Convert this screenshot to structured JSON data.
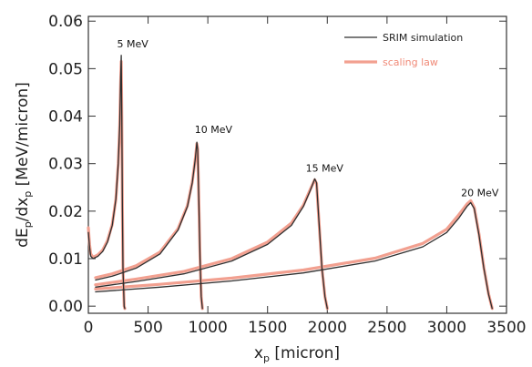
{
  "chart_data": {
    "type": "line",
    "xlabel": {
      "main": "x",
      "sub": "p",
      "unit": " [micron]"
    },
    "ylabel": {
      "d1": "dE",
      "s1": "p",
      "mid": "/dx",
      "s2": "p",
      "unit": " [MeV/micron]"
    },
    "xlim": [
      0,
      3500
    ],
    "ylim": [
      -0.0015,
      0.061
    ],
    "xticks": [
      0,
      500,
      1000,
      1500,
      2000,
      2500,
      3000,
      3500
    ],
    "yticks": [
      0.0,
      0.01,
      0.02,
      0.03,
      0.04,
      0.05,
      0.06
    ],
    "ytick_labels": [
      "0.00",
      "0.01",
      "0.02",
      "0.03",
      "0.04",
      "0.05",
      "0.06"
    ],
    "legend_position": "top-right",
    "annotations": [
      {
        "text": "5 MeV",
        "x": 240,
        "y": 0.0545
      },
      {
        "text": "10 MeV",
        "x": 890,
        "y": 0.0365
      },
      {
        "text": "15 MeV",
        "x": 1820,
        "y": 0.0283
      },
      {
        "text": "20 MeV",
        "x": 3120,
        "y": 0.0231
      }
    ],
    "series": [
      {
        "name": "SRIM simulation",
        "color": "#2f2f2f",
        "curves": [
          [
            [
              0,
              0.0155
            ],
            [
              10,
              0.0125
            ],
            [
              20,
              0.0105
            ],
            [
              40,
              0.01
            ],
            [
              80,
              0.0105
            ],
            [
              120,
              0.0115
            ],
            [
              160,
              0.0135
            ],
            [
              200,
              0.017
            ],
            [
              230,
              0.0225
            ],
            [
              250,
              0.03
            ],
            [
              262,
              0.038
            ],
            [
              270,
              0.048
            ],
            [
              275,
              0.0528
            ],
            [
              280,
              0.04
            ],
            [
              285,
              0.02
            ],
            [
              290,
              0.008
            ],
            [
              300,
              0.0
            ],
            [
              305,
              -0.0005
            ]
          ],
          [
            [
              60,
              0.0055
            ],
            [
              200,
              0.0063
            ],
            [
              400,
              0.008
            ],
            [
              600,
              0.011
            ],
            [
              750,
              0.016
            ],
            [
              830,
              0.021
            ],
            [
              870,
              0.026
            ],
            [
              895,
              0.031
            ],
            [
              908,
              0.0345
            ],
            [
              915,
              0.033
            ],
            [
              925,
              0.022
            ],
            [
              935,
              0.01
            ],
            [
              945,
              0.002
            ],
            [
              955,
              -0.0005
            ]
          ],
          [
            [
              60,
              0.004
            ],
            [
              400,
              0.0052
            ],
            [
              800,
              0.0068
            ],
            [
              1200,
              0.0095
            ],
            [
              1500,
              0.013
            ],
            [
              1700,
              0.017
            ],
            [
              1800,
              0.021
            ],
            [
              1860,
              0.0245
            ],
            [
              1895,
              0.0268
            ],
            [
              1910,
              0.026
            ],
            [
              1930,
              0.018
            ],
            [
              1955,
              0.008
            ],
            [
              1980,
              0.002
            ],
            [
              2000,
              -0.0005
            ]
          ],
          [
            [
              60,
              0.003
            ],
            [
              600,
              0.004
            ],
            [
              1200,
              0.0053
            ],
            [
              1800,
              0.007
            ],
            [
              2400,
              0.0095
            ],
            [
              2800,
              0.0125
            ],
            [
              3000,
              0.0155
            ],
            [
              3100,
              0.0185
            ],
            [
              3170,
              0.021
            ],
            [
              3200,
              0.0218
            ],
            [
              3230,
              0.0205
            ],
            [
              3270,
              0.015
            ],
            [
              3310,
              0.008
            ],
            [
              3350,
              0.0025
            ],
            [
              3380,
              -0.0005
            ]
          ]
        ]
      },
      {
        "name": "scaling law",
        "color": "#f2a090",
        "curves": [
          [
            [
              0,
              0.0165
            ],
            [
              10,
              0.013
            ],
            [
              20,
              0.011
            ],
            [
              40,
              0.0103
            ],
            [
              80,
              0.0108
            ],
            [
              120,
              0.0118
            ],
            [
              160,
              0.0138
            ],
            [
              200,
              0.0172
            ],
            [
              230,
              0.0225
            ],
            [
              250,
              0.03
            ],
            [
              262,
              0.038
            ],
            [
              270,
              0.047
            ],
            [
              275,
              0.0515
            ],
            [
              280,
              0.04
            ],
            [
              285,
              0.02
            ],
            [
              290,
              0.008
            ],
            [
              300,
              0.0
            ],
            [
              305,
              -0.0005
            ]
          ],
          [
            [
              60,
              0.006
            ],
            [
              200,
              0.0068
            ],
            [
              400,
              0.0085
            ],
            [
              600,
              0.0114
            ],
            [
              750,
              0.0163
            ],
            [
              830,
              0.0212
            ],
            [
              870,
              0.0262
            ],
            [
              895,
              0.031
            ],
            [
              908,
              0.0342
            ],
            [
              915,
              0.033
            ],
            [
              925,
              0.022
            ],
            [
              935,
              0.01
            ],
            [
              945,
              0.002
            ],
            [
              955,
              -0.0005
            ]
          ],
          [
            [
              60,
              0.0045
            ],
            [
              400,
              0.0057
            ],
            [
              800,
              0.0073
            ],
            [
              1200,
              0.01
            ],
            [
              1500,
              0.0135
            ],
            [
              1700,
              0.0175
            ],
            [
              1800,
              0.0213
            ],
            [
              1860,
              0.0247
            ],
            [
              1895,
              0.0266
            ],
            [
              1910,
              0.0258
            ],
            [
              1930,
              0.018
            ],
            [
              1955,
              0.008
            ],
            [
              1980,
              0.002
            ],
            [
              2000,
              -0.0005
            ]
          ],
          [
            [
              60,
              0.0036
            ],
            [
              600,
              0.0046
            ],
            [
              1200,
              0.0059
            ],
            [
              1800,
              0.0076
            ],
            [
              2400,
              0.0101
            ],
            [
              2800,
              0.0132
            ],
            [
              3000,
              0.0162
            ],
            [
              3100,
              0.0192
            ],
            [
              3170,
              0.0215
            ],
            [
              3200,
              0.0222
            ],
            [
              3230,
              0.0208
            ],
            [
              3270,
              0.0152
            ],
            [
              3310,
              0.0082
            ],
            [
              3350,
              0.0026
            ],
            [
              3380,
              -0.0005
            ]
          ]
        ]
      }
    ]
  }
}
